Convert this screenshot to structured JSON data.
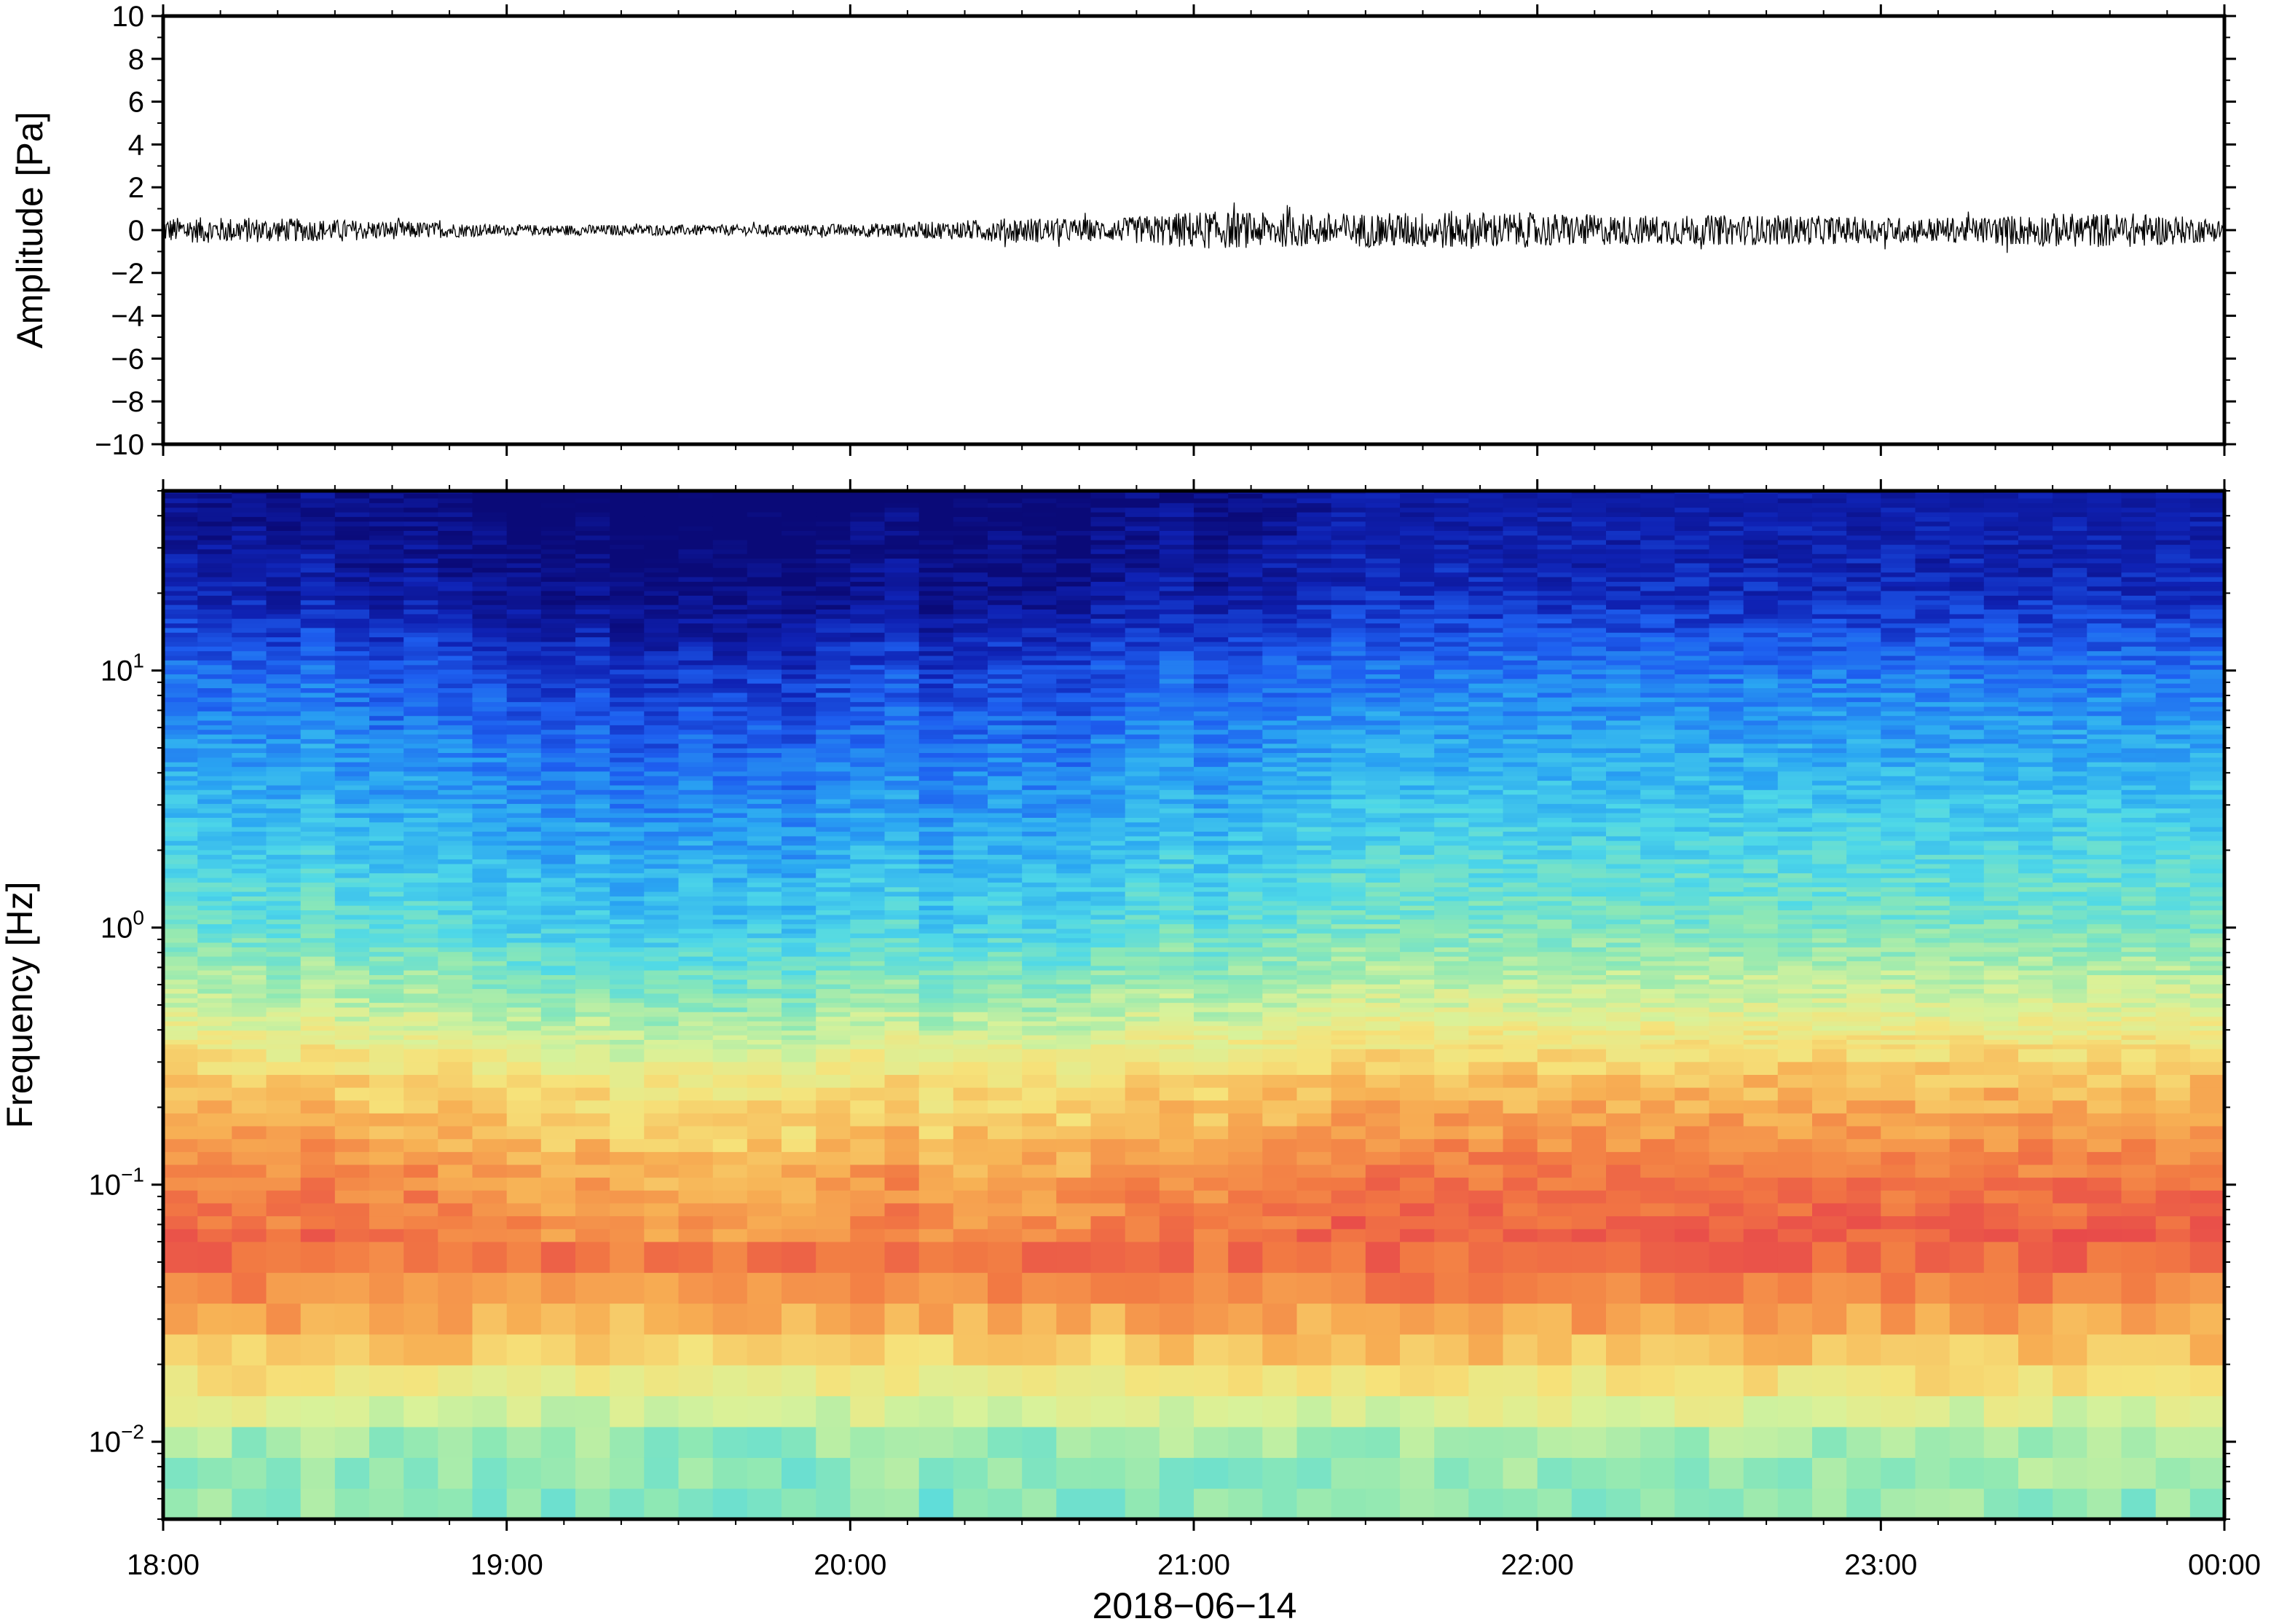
{
  "chart_data": [
    {
      "type": "line",
      "ylabel": "Amplitude [Pa]",
      "ylim": [
        -10,
        10
      ],
      "yticks": [
        10,
        8,
        6,
        4,
        2,
        0,
        -2,
        -4,
        -6,
        -8,
        -10
      ],
      "ytick_labels": [
        "10",
        "8",
        "6",
        "4",
        "2",
        "0",
        "−2",
        "−4",
        "−6",
        "−8",
        "−10"
      ],
      "series": [
        {
          "x": [
            "18:00",
            "18:15",
            "18:30",
            "18:45",
            "19:00",
            "19:15",
            "19:30",
            "19:45",
            "20:00",
            "20:15",
            "20:30",
            "20:45",
            "21:00",
            "21:15",
            "21:30",
            "21:45",
            "22:00",
            "22:15",
            "22:30",
            "22:45",
            "23:00",
            "23:15",
            "23:30",
            "23:45",
            "00:00"
          ],
          "envelope": [
            0.6,
            0.6,
            0.5,
            0.4,
            0.25,
            0.25,
            0.25,
            0.25,
            0.3,
            0.4,
            0.6,
            0.5,
            0.9,
            0.8,
            0.8,
            0.9,
            0.8,
            0.7,
            0.7,
            0.7,
            0.6,
            0.6,
            0.8,
            0.8,
            0.5
          ]
        }
      ],
      "color": "#000000",
      "grid": false
    },
    {
      "type": "heatmap",
      "ylabel": "Frequency [Hz]",
      "xlabel": "2018−06−14",
      "yscale": "log",
      "ylim": [
        0.005,
        50
      ],
      "yticks": [
        0.01,
        0.1,
        1,
        10
      ],
      "ytick_labels": [
        {
          "base": "10",
          "exp": "−2"
        },
        {
          "base": "10",
          "exp": "−1"
        },
        {
          "base": "10",
          "exp": "0"
        },
        {
          "base": "10",
          "exp": "1"
        }
      ],
      "xticks": [
        "18:00",
        "19:00",
        "20:00",
        "21:00",
        "22:00",
        "23:00",
        "00:00"
      ],
      "colormap": "jet",
      "color_stops": [
        "#0a0a78",
        "#0f22b4",
        "#1e5ff0",
        "#2aa6f2",
        "#4ed8e8",
        "#8ee8b4",
        "#d8f29a",
        "#f6e27a",
        "#f7b054",
        "#f27a43",
        "#e84a4a"
      ],
      "time_columns": 60,
      "energy_profile_by_log_freq": [
        {
          "log_f": -2.3,
          "level": 0.48
        },
        {
          "log_f": -2.0,
          "level": 0.52
        },
        {
          "log_f": -1.7,
          "level": 0.72
        },
        {
          "log_f": -1.3,
          "level": 0.92
        },
        {
          "log_f": -1.0,
          "level": 0.86
        },
        {
          "log_f": -0.6,
          "level": 0.72
        },
        {
          "log_f": -0.3,
          "level": 0.55
        },
        {
          "log_f": 0.0,
          "level": 0.42
        },
        {
          "log_f": 0.5,
          "level": 0.3
        },
        {
          "log_f": 1.0,
          "level": 0.18
        },
        {
          "log_f": 1.3,
          "level": 0.06
        },
        {
          "log_f": 1.7,
          "level": 0.0
        }
      ],
      "column_activity": [
        0.95,
        0.9,
        0.9,
        0.85,
        0.95,
        0.85,
        0.8,
        0.85,
        0.8,
        0.75,
        0.7,
        0.65,
        0.7,
        0.6,
        0.6,
        0.65,
        0.6,
        0.65,
        0.6,
        0.7,
        0.75,
        0.8,
        0.65,
        0.7,
        0.75,
        0.7,
        0.7,
        0.8,
        0.85,
        0.9,
        0.8,
        0.85,
        0.9,
        0.95,
        1.0,
        1.0,
        1.0,
        1.0,
        1.0,
        1.0,
        1.0,
        1.0,
        1.0,
        1.0,
        1.0,
        1.0,
        1.0,
        1.0,
        1.0,
        1.0,
        1.0,
        1.0,
        1.0,
        1.0,
        1.0,
        1.0,
        1.0,
        1.0,
        1.0,
        1.0
      ]
    }
  ]
}
